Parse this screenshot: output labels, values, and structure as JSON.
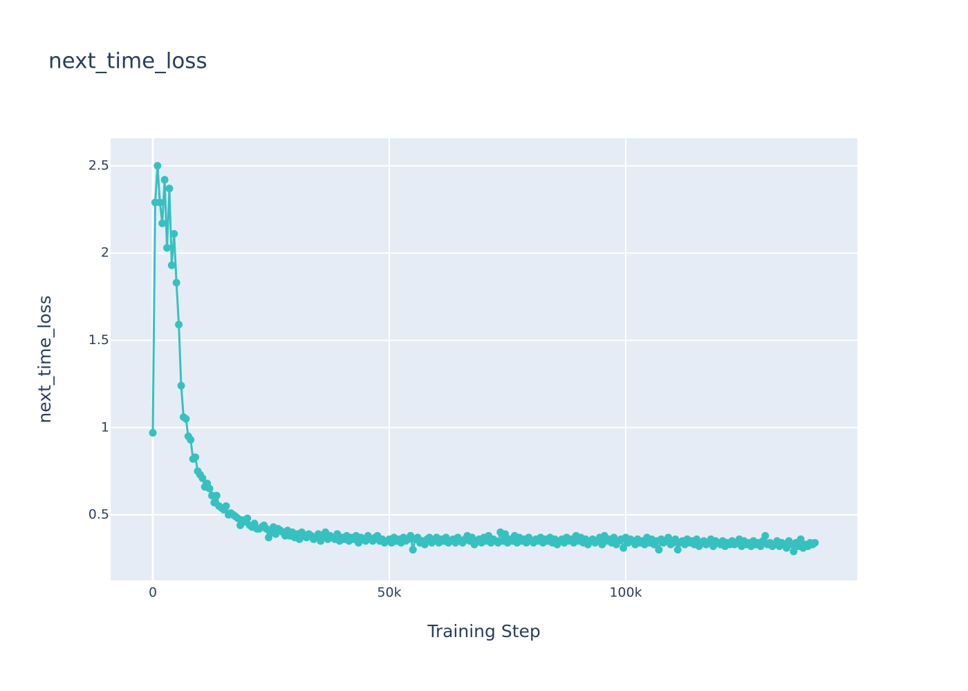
{
  "chart_data": {
    "type": "line",
    "title": "next_time_loss",
    "x_label": "Training Step",
    "y_label": "next_time_loss",
    "xlim": [
      -8918,
      148977
    ],
    "ylim": [
      0.124,
      2.658
    ],
    "xticks": [
      0,
      {
        "value": 50000,
        "label": "50k"
      },
      {
        "value": 100000,
        "label": "100k"
      }
    ],
    "yticks": [
      0.5,
      1,
      1.5,
      2,
      2.5
    ],
    "grid": true,
    "x": [
      0,
      500,
      1000,
      1500,
      2000,
      2500,
      3000,
      3500,
      4000,
      4500,
      5000,
      5500,
      6000,
      6500,
      7000,
      7500,
      8000,
      8500,
      9000,
      9500,
      10000,
      10500,
      11000,
      11500,
      12000,
      12500,
      13000,
      13500,
      14000,
      14500,
      15000,
      15500,
      16000,
      16500,
      17000,
      17500,
      18000,
      18500,
      19000,
      19500,
      20000,
      20500,
      21000,
      21500,
      22000,
      22500,
      23000,
      23500,
      24000,
      24500,
      25000,
      25500,
      26000,
      26500,
      27000,
      27500,
      28000,
      28500,
      29000,
      29500,
      30000,
      30500,
      31000,
      31500,
      32000,
      32500,
      33000,
      33500,
      34000,
      34500,
      35000,
      35500,
      36000,
      36500,
      37000,
      37500,
      38000,
      38500,
      39000,
      39500,
      40000,
      40500,
      41000,
      41500,
      42000,
      42500,
      43000,
      43500,
      44000,
      44500,
      45000,
      45500,
      46000,
      46500,
      47000,
      47500,
      48000,
      48500,
      49000,
      49500,
      50000,
      50500,
      51000,
      51500,
      52000,
      52500,
      53000,
      53500,
      54000,
      54500,
      55000,
      55500,
      56000,
      56500,
      57000,
      57500,
      58000,
      58500,
      59000,
      59500,
      60000,
      60500,
      61000,
      61500,
      62000,
      62500,
      63000,
      63500,
      64000,
      64500,
      65000,
      65500,
      66000,
      66500,
      67000,
      67500,
      68000,
      68500,
      69000,
      69500,
      70000,
      70500,
      71000,
      71500,
      72000,
      72500,
      73000,
      73500,
      74000,
      74500,
      75000,
      75500,
      76000,
      76500,
      77000,
      77500,
      78000,
      78500,
      79000,
      79500,
      80000,
      80500,
      81000,
      81500,
      82000,
      82500,
      83000,
      83500,
      84000,
      84500,
      85000,
      85500,
      86000,
      86500,
      87000,
      87500,
      88000,
      88500,
      89000,
      89500,
      90000,
      90500,
      91000,
      91500,
      92000,
      92500,
      93000,
      93500,
      94000,
      94500,
      95000,
      95500,
      96000,
      96500,
      97000,
      97500,
      98000,
      98500,
      99000,
      99500,
      100000,
      100500,
      101000,
      101500,
      102000,
      102500,
      103000,
      103500,
      104000,
      104500,
      105000,
      105500,
      106000,
      106500,
      107000,
      107500,
      108000,
      108500,
      109000,
      109500,
      110000,
      110500,
      111000,
      111500,
      112000,
      112500,
      113000,
      113500,
      114000,
      114500,
      115000,
      115500,
      116000,
      116500,
      117000,
      117500,
      118000,
      118500,
      119000,
      119500,
      120000,
      120500,
      121000,
      121500,
      122000,
      122500,
      123000,
      123500,
      124000,
      124500,
      125000,
      125500,
      126000,
      126500,
      127000,
      127500,
      128000,
      128500,
      129000,
      129500,
      130000,
      130500,
      131000,
      131500,
      132000,
      132500,
      133000,
      133500,
      134000,
      134500,
      135000,
      135500,
      136000,
      136500,
      137000,
      137500,
      138000,
      138500,
      139000,
      139500,
      140000
    ],
    "series": [
      {
        "name": "next_time_loss",
        "color": "#37c0c0",
        "values": [
          0.97,
          2.29,
          2.5,
          2.29,
          2.17,
          2.42,
          2.03,
          2.37,
          1.93,
          2.11,
          1.83,
          1.59,
          1.24,
          1.06,
          1.05,
          0.95,
          0.93,
          0.82,
          0.83,
          0.75,
          0.73,
          0.71,
          0.66,
          0.68,
          0.65,
          0.61,
          0.57,
          0.61,
          0.55,
          0.54,
          0.53,
          0.55,
          0.5,
          0.51,
          0.5,
          0.49,
          0.48,
          0.44,
          0.47,
          0.46,
          0.48,
          0.44,
          0.43,
          0.45,
          0.42,
          0.42,
          0.43,
          0.44,
          0.42,
          0.37,
          0.4,
          0.43,
          0.39,
          0.42,
          0.41,
          0.4,
          0.38,
          0.41,
          0.38,
          0.4,
          0.37,
          0.39,
          0.36,
          0.4,
          0.38,
          0.37,
          0.39,
          0.38,
          0.36,
          0.37,
          0.39,
          0.35,
          0.37,
          0.4,
          0.36,
          0.38,
          0.37,
          0.36,
          0.39,
          0.35,
          0.37,
          0.36,
          0.38,
          0.35,
          0.37,
          0.36,
          0.38,
          0.34,
          0.37,
          0.36,
          0.35,
          0.38,
          0.36,
          0.35,
          0.37,
          0.38,
          0.35,
          0.36,
          0.34,
          0.35,
          0.36,
          0.34,
          0.37,
          0.35,
          0.36,
          0.34,
          0.37,
          0.35,
          0.36,
          0.38,
          0.3,
          0.36,
          0.37,
          0.34,
          0.35,
          0.33,
          0.36,
          0.37,
          0.34,
          0.35,
          0.37,
          0.34,
          0.36,
          0.35,
          0.37,
          0.34,
          0.35,
          0.36,
          0.34,
          0.37,
          0.35,
          0.34,
          0.36,
          0.38,
          0.35,
          0.37,
          0.33,
          0.35,
          0.36,
          0.34,
          0.37,
          0.35,
          0.38,
          0.34,
          0.36,
          0.35,
          0.34,
          0.4,
          0.35,
          0.39,
          0.34,
          0.36,
          0.35,
          0.38,
          0.34,
          0.37,
          0.35,
          0.36,
          0.34,
          0.37,
          0.35,
          0.34,
          0.36,
          0.35,
          0.37,
          0.34,
          0.36,
          0.35,
          0.37,
          0.34,
          0.36,
          0.33,
          0.35,
          0.36,
          0.34,
          0.37,
          0.35,
          0.36,
          0.34,
          0.38,
          0.35,
          0.37,
          0.34,
          0.36,
          0.33,
          0.35,
          0.36,
          0.34,
          0.35,
          0.37,
          0.33,
          0.38,
          0.35,
          0.36,
          0.34,
          0.37,
          0.33,
          0.35,
          0.36,
          0.31,
          0.37,
          0.34,
          0.36,
          0.35,
          0.33,
          0.36,
          0.34,
          0.35,
          0.33,
          0.37,
          0.34,
          0.36,
          0.33,
          0.35,
          0.3,
          0.36,
          0.34,
          0.35,
          0.37,
          0.33,
          0.34,
          0.36,
          0.3,
          0.34,
          0.35,
          0.33,
          0.36,
          0.34,
          0.35,
          0.33,
          0.36,
          0.32,
          0.34,
          0.35,
          0.33,
          0.34,
          0.36,
          0.32,
          0.35,
          0.34,
          0.33,
          0.35,
          0.32,
          0.34,
          0.33,
          0.35,
          0.33,
          0.34,
          0.36,
          0.32,
          0.35,
          0.33,
          0.34,
          0.32,
          0.35,
          0.33,
          0.34,
          0.32,
          0.35,
          0.38,
          0.33,
          0.34,
          0.32,
          0.33,
          0.35,
          0.32,
          0.34,
          0.33,
          0.31,
          0.35,
          0.33,
          0.29,
          0.34,
          0.32,
          0.36,
          0.31,
          0.33,
          0.32,
          0.34,
          0.33,
          0.34
        ]
      }
    ]
  }
}
